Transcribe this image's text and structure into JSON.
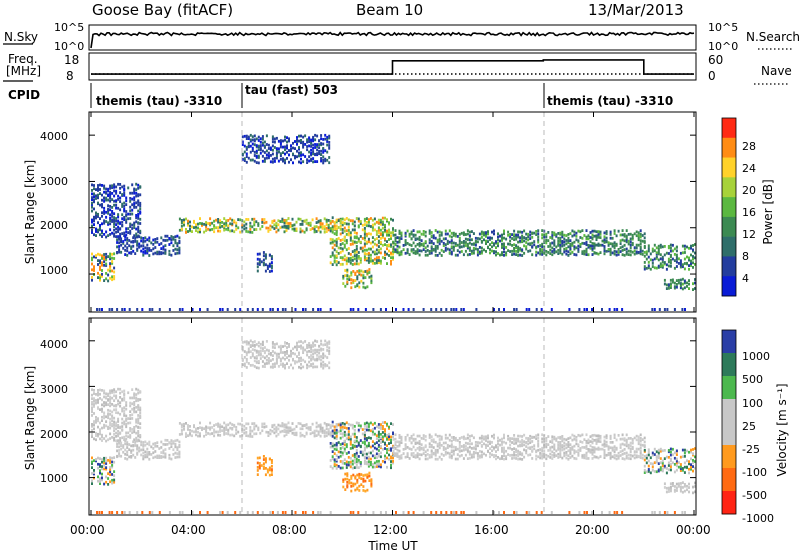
{
  "header": {
    "station": "Goose Bay (fitACF)",
    "beam": "Beam 10",
    "date": "13/Mar/2013"
  },
  "noise_panel": {
    "left_label": "N.Sky",
    "right_label": "N.Search",
    "left_ticks": [
      "10^5",
      "10^0"
    ],
    "right_ticks": [
      "10^5",
      "10^0"
    ]
  },
  "freq_panel": {
    "left_label_1": "Freq.",
    "left_label_2": "[MHz]",
    "right_label": "Nave",
    "left_ticks": [
      "18",
      "8"
    ],
    "right_ticks": [
      "60",
      "0"
    ]
  },
  "cpid_panel": {
    "label": "CPID",
    "segments": [
      {
        "text": "themis (tau) -3310",
        "start_hour": 0
      },
      {
        "text": "tau (fast) 503",
        "start_hour": 6
      },
      {
        "text": "themis (tau) -3310",
        "start_hour": 18
      }
    ]
  },
  "power_panel": {
    "ylabel": "Slant Range [km]",
    "colorbar_label": "Power [dB]",
    "colorbar_ticks": [
      "28",
      "24",
      "20",
      "16",
      "12",
      "8",
      "4"
    ]
  },
  "velocity_panel": {
    "ylabel": "Slant Range [km]",
    "colorbar_label": "Velocity  [m s⁻¹]",
    "colorbar_ticks": [
      "1000",
      "500",
      "100",
      "25",
      "-25",
      "-100",
      "-500",
      "-1000"
    ]
  },
  "x_axis": {
    "label": "Time UT",
    "tick_labels": [
      "00:00",
      "04:00",
      "08:00",
      "12:00",
      "16:00",
      "20:00",
      "00:00"
    ]
  },
  "y_axis": {
    "tick_labels": [
      "1000",
      "2000",
      "3000",
      "4000"
    ]
  },
  "colors": {
    "power_scale": [
      "#0a1cd6",
      "#233d9e",
      "#2f6e6a",
      "#3c8a52",
      "#5bb840",
      "#a7d23a",
      "#ffd22a",
      "#ff8c14",
      "#ff2a14"
    ],
    "velocity_scale": [
      "#2a3ea6",
      "#2d7a5a",
      "#4cb84e",
      "#c8c8c8",
      "#c8c8c8",
      "#ff9a1e",
      "#ff6a12",
      "#ff2414"
    ]
  },
  "chart_data": {
    "type": "heatmap",
    "x_range_hours": [
      0,
      24
    ],
    "y_range_km": [
      180,
      4500
    ],
    "x_unit": "hours UT",
    "y_unit": "km",
    "noise_sky_scale": "log, 10^0 to 10^5",
    "freq_range_mhz": [
      8,
      18
    ],
    "nave_range": [
      0,
      60
    ],
    "freq_steps": [
      {
        "from_hour": 0,
        "to_hour": 12,
        "level": 0.1
      },
      {
        "from_hour": 12,
        "to_hour": 18,
        "level": 0.8
      },
      {
        "from_hour": 18,
        "to_hour": 22,
        "level": 0.85
      },
      {
        "from_hour": 22,
        "to_hour": 24,
        "level": 0.1
      }
    ],
    "cpid_changes_hour": [
      6,
      18
    ],
    "power_range_db": [
      0,
      30
    ],
    "velocity_range_ms": [
      -1000,
      1000
    ],
    "echo_regions": [
      {
        "t0": 0.0,
        "t1": 0.9,
        "r0": 850,
        "r1": 1400,
        "power": "mixed",
        "velocity": "mixed"
      },
      {
        "t0": 0.0,
        "t1": 2.0,
        "r0": 1800,
        "r1": 2900,
        "power": "weak",
        "velocity": "grey"
      },
      {
        "t0": 1.0,
        "t1": 3.5,
        "r0": 1400,
        "r1": 1800,
        "power": "weak",
        "velocity": "grey"
      },
      {
        "t0": 3.5,
        "t1": 10.0,
        "r0": 1900,
        "r1": 2200,
        "power": "strong",
        "velocity": "grey"
      },
      {
        "t0": 6.0,
        "t1": 9.5,
        "r0": 3400,
        "r1": 4000,
        "power": "weak",
        "velocity": "grey"
      },
      {
        "t0": 6.6,
        "t1": 7.2,
        "r0": 1050,
        "r1": 1450,
        "power": "weak",
        "velocity": "orange"
      },
      {
        "t0": 9.5,
        "t1": 12.0,
        "r0": 1200,
        "r1": 2200,
        "power": "strong",
        "velocity": "mixed"
      },
      {
        "t0": 10.0,
        "t1": 11.2,
        "r0": 700,
        "r1": 1100,
        "power": "strong",
        "velocity": "orange"
      },
      {
        "t0": 12.0,
        "t1": 22.0,
        "r0": 1400,
        "r1": 1900,
        "power": "moderate",
        "velocity": "grey"
      },
      {
        "t0": 22.0,
        "t1": 24.0,
        "r0": 1100,
        "r1": 1600,
        "power": "moderate",
        "velocity": "mixed"
      },
      {
        "t0": 22.8,
        "t1": 24.0,
        "r0": 650,
        "r1": 850,
        "power": "moderate",
        "velocity": "grey"
      }
    ]
  }
}
